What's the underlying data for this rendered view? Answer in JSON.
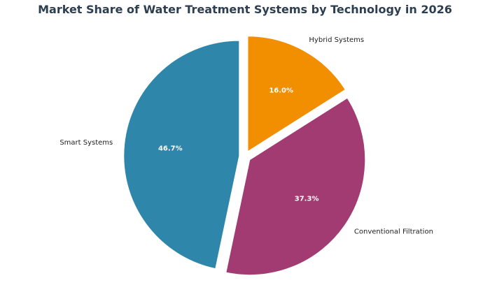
{
  "chart_data": {
    "type": "pie",
    "title": "Market Share of Water Treatment Systems by Technology in 2026",
    "start_angle_deg": 90,
    "direction": "clockwise",
    "slices": [
      {
        "label": "Hybrid Systems",
        "value": 16.0,
        "pct_label": "16.0%",
        "color": "#F18F01",
        "exploded": true
      },
      {
        "label": "Conventional Filtration",
        "value": 37.3,
        "pct_label": "37.3%",
        "color": "#A23B72",
        "exploded": true
      },
      {
        "label": "Smart Systems",
        "value": 46.7,
        "pct_label": "46.7%",
        "color": "#2E86AB",
        "exploded": true
      }
    ]
  }
}
